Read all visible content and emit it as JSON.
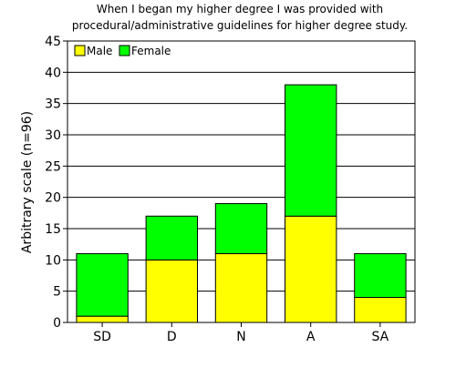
{
  "chart_data": {
    "type": "bar",
    "stacked": true,
    "title_lines": [
      "When I began my higher degree I was provided with",
      "procedural/administrative guidelines for higher degree study."
    ],
    "xlabel": "",
    "ylabel": "Arbitrary scale (n=96)",
    "categories": [
      "SD",
      "D",
      "N",
      "A",
      "SA"
    ],
    "series": [
      {
        "name": "Male",
        "color": "#ffff00",
        "values": [
          1,
          10,
          11,
          17,
          4
        ]
      },
      {
        "name": "Female",
        "color": "#00ff00",
        "values": [
          10,
          7,
          8,
          21,
          7
        ]
      }
    ],
    "ylim": [
      0,
      45
    ],
    "yticks": [
      0,
      5,
      10,
      15,
      20,
      25,
      30,
      35,
      40,
      45
    ],
    "grid": true,
    "legend_position": "top-left"
  }
}
